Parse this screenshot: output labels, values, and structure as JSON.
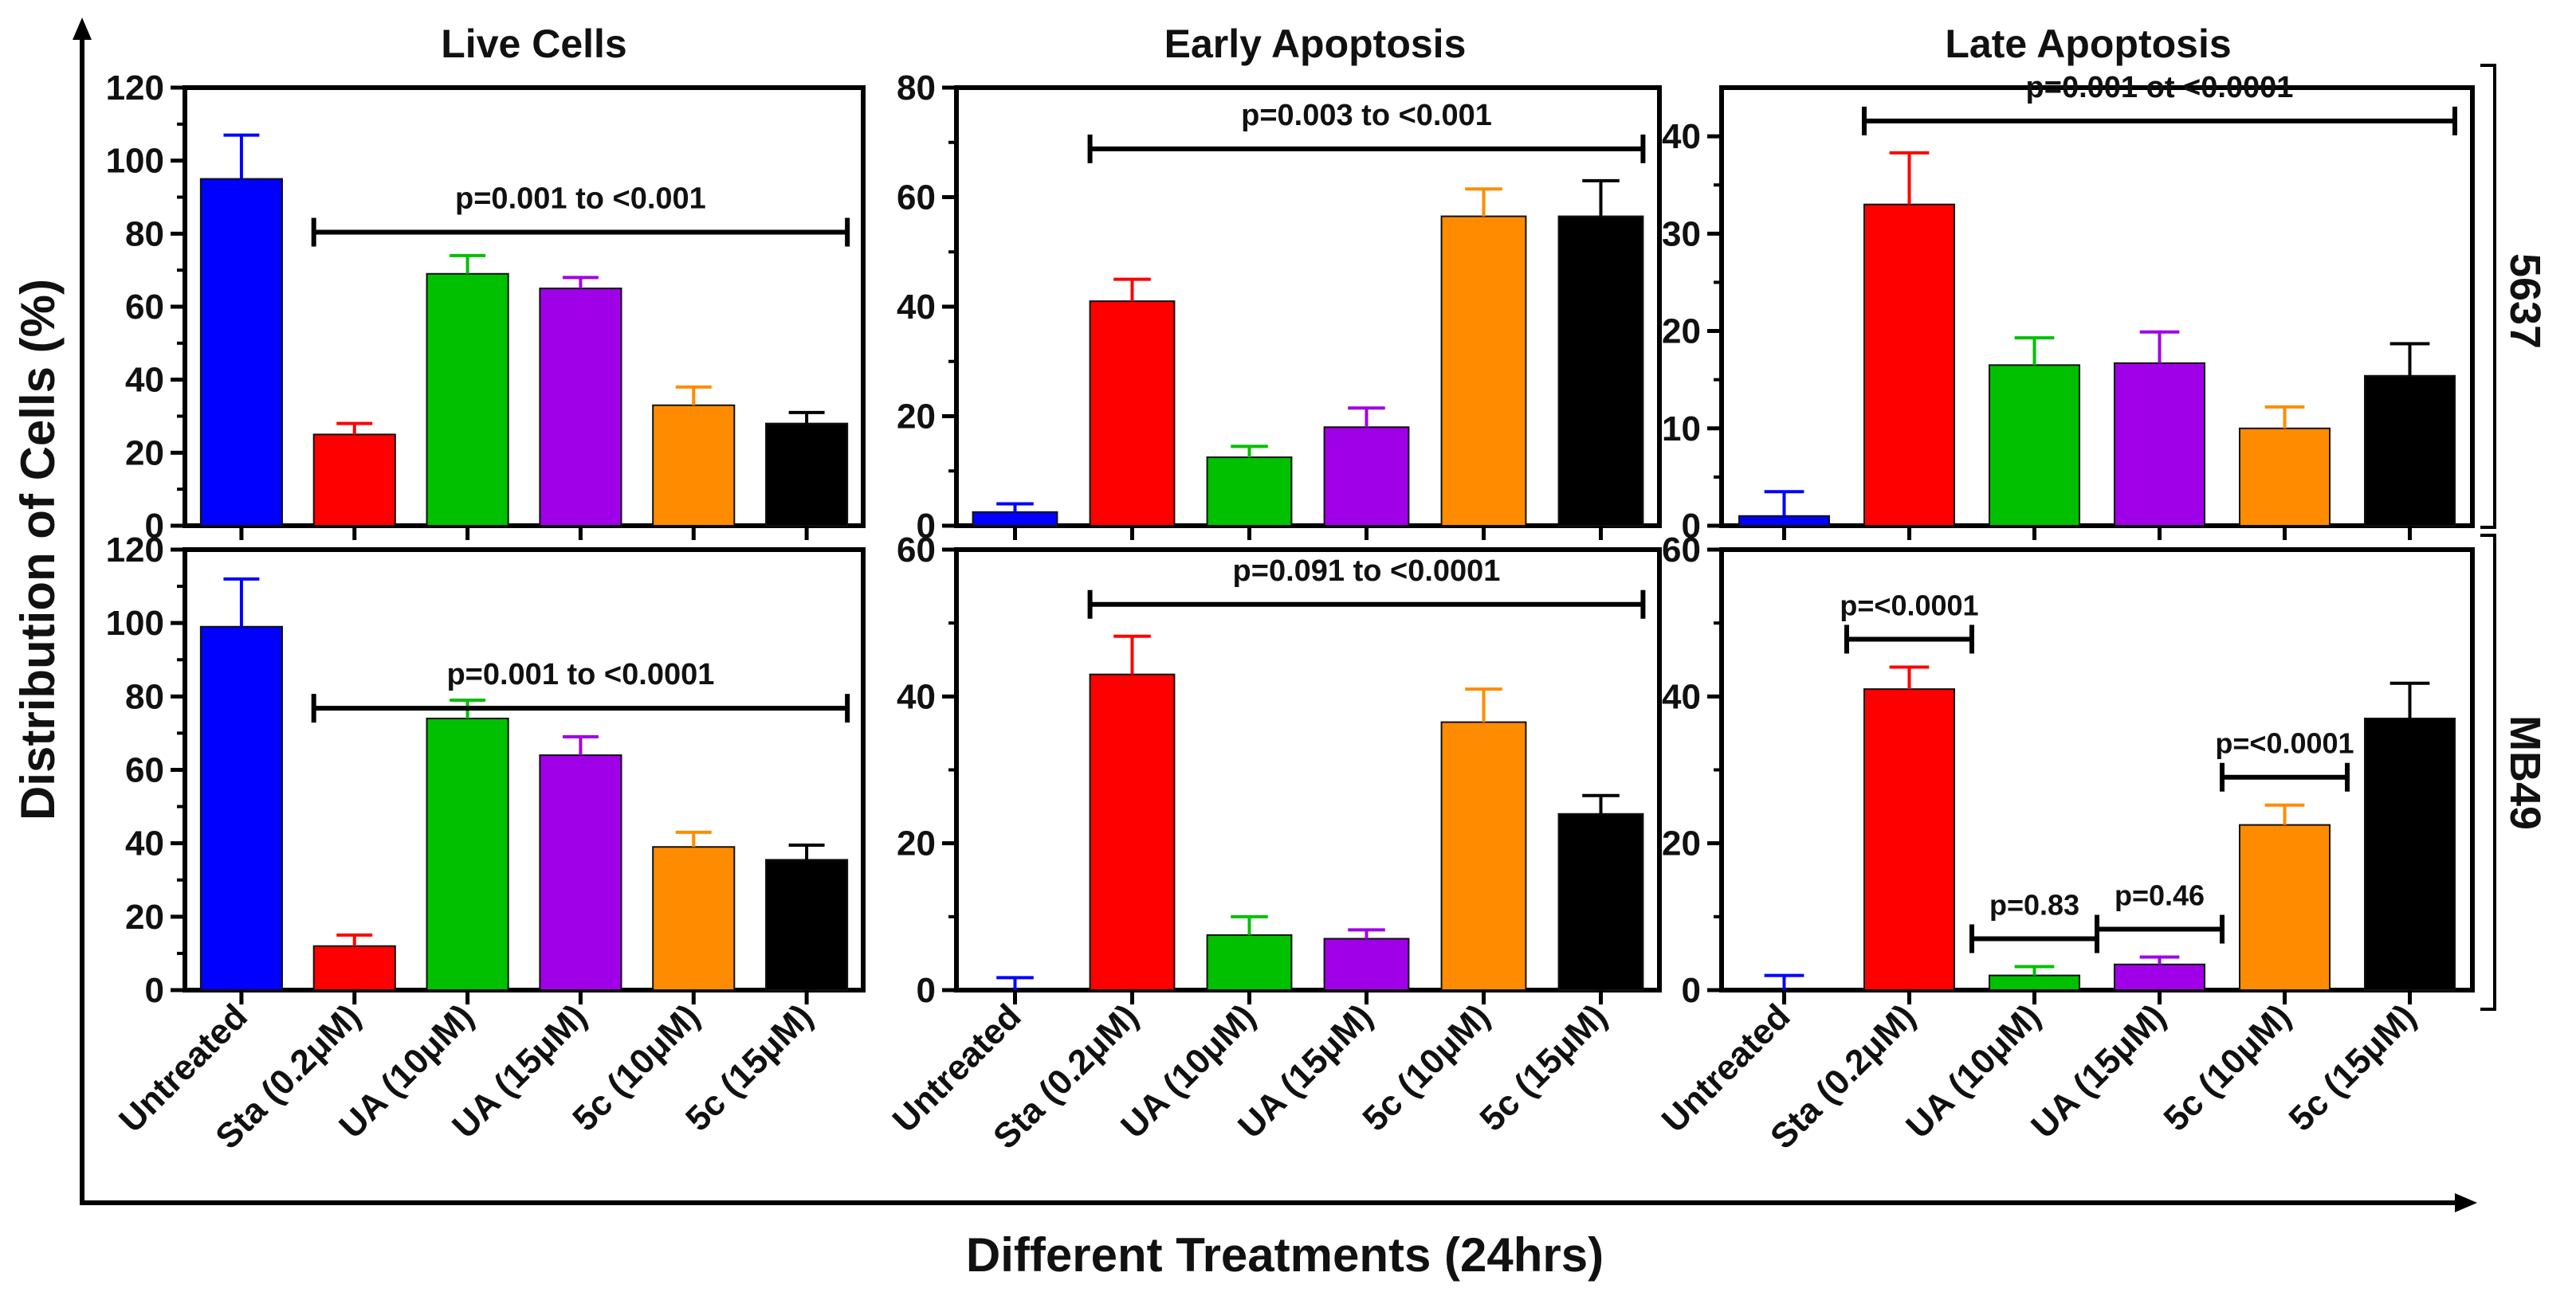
{
  "figure": {
    "y_axis_label": "Distribution of Cells (%)",
    "x_axis_label": "Different Treatments (24hrs)",
    "column_titles": [
      "Live Cells",
      "Early Apoptosis",
      "Late Apoptosis"
    ],
    "row_labels": [
      "5637",
      "MB49"
    ],
    "categories": [
      "Untreated",
      "Sta (0.2μM)",
      "UA (10μM)",
      "UA (15μM)",
      "5c (10μM)",
      "5c (15μM)"
    ],
    "bar_colors": [
      "#0000ff",
      "#ff0000",
      "#00c000",
      "#a000e8",
      "#ff8c00",
      "#000000"
    ]
  },
  "chart_data": [
    {
      "type": "bar",
      "title": "Live Cells",
      "cell_line": "5637",
      "categories": [
        "Untreated",
        "Sta (0.2μM)",
        "UA (10μM)",
        "UA (15μM)",
        "5c (10μM)",
        "5c (15μM)"
      ],
      "values": [
        95,
        25,
        69,
        65,
        33,
        28
      ],
      "errors": [
        12,
        3,
        5,
        3,
        5,
        3
      ],
      "ylim": [
        0,
        120
      ],
      "yticks": [
        0,
        20,
        40,
        60,
        80,
        100,
        120
      ],
      "annotations": [
        {
          "text": "p=0.001 to <0.001",
          "from": 1,
          "to": 5
        }
      ]
    },
    {
      "type": "bar",
      "title": "Early Apoptosis",
      "cell_line": "5637",
      "categories": [
        "Untreated",
        "Sta (0.2μM)",
        "UA (10μM)",
        "UA (15μM)",
        "5c (10μM)",
        "5c (15μM)"
      ],
      "values": [
        2.5,
        41,
        12.5,
        18,
        56.5,
        56.5
      ],
      "errors": [
        1.5,
        4,
        2,
        3.5,
        5,
        6.5
      ],
      "ylim": [
        0,
        80
      ],
      "yticks": [
        0,
        20,
        40,
        60,
        80
      ],
      "annotations": [
        {
          "text": "p=0.003 to <0.001",
          "from": 1,
          "to": 5
        }
      ]
    },
    {
      "type": "bar",
      "title": "Late Apoptosis",
      "cell_line": "5637",
      "categories": [
        "Untreated",
        "Sta (0.2μM)",
        "UA (10μM)",
        "UA (15μM)",
        "5c (10μM)",
        "5c (15μM)"
      ],
      "values": [
        1,
        33,
        16.5,
        16.7,
        10,
        15.4
      ],
      "errors": [
        2.5,
        5.3,
        2.8,
        3.2,
        2.2,
        3.3
      ],
      "ylim": [
        0,
        45
      ],
      "yticks": [
        0,
        10,
        20,
        30,
        40
      ],
      "annotations": [
        {
          "text": "p=0.001 ot <0.0001",
          "from": 1,
          "to": 5
        }
      ]
    },
    {
      "type": "bar",
      "title": "Live Cells",
      "cell_line": "MB49",
      "categories": [
        "Untreated",
        "Sta (0.2μM)",
        "UA (10μM)",
        "UA (15μM)",
        "5c (10μM)",
        "5c (15μM)"
      ],
      "values": [
        99,
        12,
        74,
        64,
        39,
        35.5
      ],
      "errors": [
        13,
        3,
        5,
        5,
        4,
        4
      ],
      "ylim": [
        0,
        120
      ],
      "yticks": [
        0,
        20,
        40,
        60,
        80,
        100,
        120
      ],
      "annotations": [
        {
          "text": "p=0.001 to <0.0001",
          "from": 1,
          "to": 5
        }
      ]
    },
    {
      "type": "bar",
      "title": "Early Apoptosis",
      "cell_line": "MB49",
      "categories": [
        "Untreated",
        "Sta (0.2μM)",
        "UA (10μM)",
        "UA (15μM)",
        "5c (10μM)",
        "5c (15μM)"
      ],
      "values": [
        0,
        43,
        7.5,
        7,
        36.5,
        24
      ],
      "errors": [
        1.7,
        5.2,
        2.5,
        1.2,
        4.5,
        2.5
      ],
      "ylim": [
        0,
        60
      ],
      "yticks": [
        0,
        20,
        40,
        60
      ],
      "annotations": [
        {
          "text": "p=0.091 to <0.0001",
          "from": 1,
          "to": 5
        }
      ]
    },
    {
      "type": "bar",
      "title": "Late Apoptosis",
      "cell_line": "MB49",
      "categories": [
        "Untreated",
        "Sta (0.2μM)",
        "UA (10μM)",
        "UA (15μM)",
        "5c (10μM)",
        "5c (15μM)"
      ],
      "values": [
        0,
        41,
        2,
        3.5,
        22.5,
        37
      ],
      "errors": [
        2,
        3,
        1.2,
        1,
        2.7,
        4.8
      ],
      "ylim": [
        0,
        60
      ],
      "yticks": [
        0,
        20,
        40,
        60
      ],
      "annotations": [
        {
          "text": "p=<0.0001",
          "from": 0.5,
          "to": 1.5
        },
        {
          "text": "p=0.83",
          "from": 1.5,
          "to": 2.5
        },
        {
          "text": "p=0.46",
          "from": 2.5,
          "to": 3.5
        },
        {
          "text": "p=<0.0001",
          "from": 3.5,
          "to": 4.5
        }
      ]
    }
  ]
}
